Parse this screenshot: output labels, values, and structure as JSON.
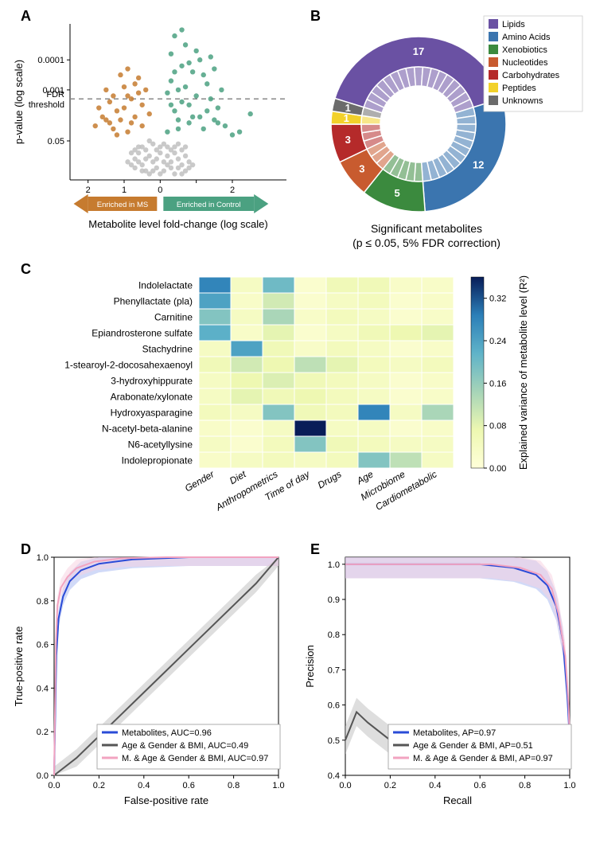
{
  "panelA": {
    "type": "scatter",
    "label": "A",
    "xlabel": "Metabolite level fold-change (log scale)",
    "ylabel": "p-value (log scale)",
    "fdr_label": "FDR\nthreshold",
    "fdr_y": 2.7,
    "xlim": [
      -2.5,
      3.5
    ],
    "ylim": [
      0,
      5.2
    ],
    "yticks": [
      {
        "v": 1.3,
        "l": "0.05"
      },
      {
        "v": 3,
        "l": "0.001"
      },
      {
        "v": 4,
        "l": "0.0001"
      }
    ],
    "xticks": [
      {
        "v": -2,
        "l": "2"
      },
      {
        "v": -1,
        "l": "1"
      },
      {
        "v": 0,
        "l": "0"
      },
      {
        "v": 1,
        "l": ""
      },
      {
        "v": 2,
        "l": "2"
      }
    ],
    "arrow_left_label": "Enriched in MS",
    "arrow_right_label": "Enriched in Control",
    "colors": {
      "ms": "#c67b2f",
      "ctrl": "#4ba181",
      "ns": "#bfbfbf",
      "grid": "#888888"
    },
    "points_ns": [
      [
        -0.5,
        0.5
      ],
      [
        -0.3,
        0.8
      ],
      [
        0.1,
        0.6
      ],
      [
        0.3,
        0.4
      ],
      [
        -0.1,
        1.0
      ],
      [
        0.5,
        0.7
      ],
      [
        -0.6,
        0.9
      ],
      [
        0.2,
        1.1
      ],
      [
        -0.4,
        0.3
      ],
      [
        0.6,
        0.5
      ],
      [
        -0.2,
        0.6
      ],
      [
        0.0,
        0.2
      ],
      [
        0.4,
        0.9
      ],
      [
        -0.7,
        0.4
      ],
      [
        0.7,
        0.3
      ],
      [
        -0.3,
        0.2
      ],
      [
        0.1,
        0.3
      ],
      [
        -0.5,
        1.1
      ],
      [
        0.3,
        1.0
      ],
      [
        -0.1,
        0.4
      ],
      [
        0.5,
        1.2
      ],
      [
        -0.6,
        0.6
      ],
      [
        0.2,
        0.5
      ],
      [
        -0.4,
        0.7
      ],
      [
        0.6,
        1.0
      ],
      [
        -0.2,
        1.2
      ],
      [
        0.0,
        0.9
      ],
      [
        0.4,
        0.2
      ],
      [
        -0.7,
        1.0
      ],
      [
        0.7,
        0.8
      ],
      [
        -0.8,
        0.5
      ],
      [
        0.8,
        0.6
      ],
      [
        -0.3,
        1.3
      ],
      [
        0.3,
        0.6
      ],
      [
        -0.5,
        0.3
      ],
      [
        0.5,
        0.4
      ],
      [
        -0.1,
        0.7
      ],
      [
        0.1,
        1.2
      ],
      [
        -0.6,
        1.1
      ],
      [
        0.6,
        0.2
      ],
      [
        -0.4,
        1.0
      ],
      [
        0.4,
        1.1
      ],
      [
        -0.2,
        0.3
      ],
      [
        0.2,
        0.8
      ],
      [
        0.0,
        1.1
      ],
      [
        -0.7,
        0.7
      ],
      [
        0.7,
        1.1
      ],
      [
        -0.8,
        0.9
      ],
      [
        0.8,
        0.4
      ],
      [
        -0.9,
        0.6
      ],
      [
        0.9,
        0.5
      ]
    ],
    "points_ms": [
      [
        -1.5,
        2.0
      ],
      [
        -1.2,
        2.3
      ],
      [
        -0.9,
        2.8
      ],
      [
        -1.8,
        1.8
      ],
      [
        -0.7,
        3.2
      ],
      [
        -1.1,
        3.5
      ],
      [
        -0.5,
        2.5
      ],
      [
        -1.4,
        2.6
      ],
      [
        -0.8,
        1.9
      ],
      [
        -1.6,
        2.1
      ],
      [
        -0.6,
        2.9
      ],
      [
        -1.3,
        1.7
      ],
      [
        -1.0,
        2.4
      ],
      [
        -0.9,
        1.6
      ],
      [
        -1.7,
        2.4
      ],
      [
        -0.4,
        3.0
      ],
      [
        -1.2,
        1.5
      ],
      [
        -0.7,
        2.1
      ],
      [
        -1.5,
        3.0
      ],
      [
        -0.5,
        1.8
      ],
      [
        -1.1,
        2.0
      ],
      [
        -0.8,
        2.7
      ],
      [
        -1.4,
        1.9
      ],
      [
        -0.6,
        3.4
      ],
      [
        -1.0,
        3.1
      ],
      [
        -0.3,
        2.2
      ],
      [
        -1.3,
        2.8
      ],
      [
        -0.9,
        3.7
      ]
    ],
    "points_ctrl": [
      [
        0.5,
        3.0
      ],
      [
        0.8,
        2.5
      ],
      [
        1.2,
        3.5
      ],
      [
        0.3,
        4.2
      ],
      [
        1.5,
        2.0
      ],
      [
        0.6,
        3.8
      ],
      [
        1.0,
        2.8
      ],
      [
        0.4,
        2.3
      ],
      [
        1.8,
        1.8
      ],
      [
        0.7,
        4.5
      ],
      [
        1.3,
        3.2
      ],
      [
        0.2,
        2.9
      ],
      [
        1.6,
        2.4
      ],
      [
        0.9,
        3.6
      ],
      [
        0.5,
        2.0
      ],
      [
        1.1,
        4.0
      ],
      [
        2.0,
        1.5
      ],
      [
        0.3,
        3.3
      ],
      [
        1.4,
        2.7
      ],
      [
        0.8,
        1.9
      ],
      [
        2.5,
        2.2
      ],
      [
        0.6,
        2.6
      ],
      [
        1.2,
        1.7
      ],
      [
        0.4,
        4.8
      ],
      [
        1.7,
        3.0
      ],
      [
        0.9,
        2.1
      ],
      [
        0.2,
        1.6
      ],
      [
        1.5,
        3.7
      ],
      [
        0.7,
        3.1
      ],
      [
        1.0,
        4.3
      ],
      [
        0.5,
        1.7
      ],
      [
        1.3,
        2.3
      ],
      [
        2.2,
        1.6
      ],
      [
        0.8,
        3.9
      ],
      [
        0.4,
        3.6
      ],
      [
        1.1,
        2.1
      ],
      [
        0.6,
        5.0
      ],
      [
        1.6,
        1.9
      ],
      [
        0.3,
        2.5
      ],
      [
        1.4,
        4.1
      ]
    ]
  },
  "panelB": {
    "type": "pie",
    "label": "B",
    "caption_line1": "Significant metabolites",
    "caption_line2": "(p  ≤ 0.05, 5% FDR correction)",
    "legend_title": "",
    "categories": [
      {
        "name": "Lipids",
        "color": "#6a51a3",
        "count": 17,
        "show_count": true
      },
      {
        "name": "Amino Acids",
        "color": "#3b75af",
        "count": 12,
        "show_count": true
      },
      {
        "name": "Xenobiotics",
        "color": "#3b8a3e",
        "count": 5,
        "show_count": true
      },
      {
        "name": "Nucleotides",
        "color": "#c85b2f",
        "count": 3,
        "show_count": true
      },
      {
        "name": "Carbohydrates",
        "color": "#b52a2a",
        "count": 3,
        "show_count": true
      },
      {
        "name": "Peptides",
        "color": "#f2d12a",
        "count": 1,
        "show_count": true
      },
      {
        "name": "Unknowns",
        "color": "#6b6b6b",
        "count": 1,
        "show_count": true
      }
    ],
    "inner_slice_color_lighten": 0.45
  },
  "panelC": {
    "type": "heatmap",
    "label": "C",
    "cbar_label": "Explained variance of metabolite level (R²)",
    "cbar_ticks": [
      0.0,
      0.08,
      0.16,
      0.24,
      0.32
    ],
    "vmin": 0.0,
    "vmax": 0.36,
    "colormap": [
      {
        "t": 0.0,
        "c": "#ffffd9"
      },
      {
        "t": 0.2,
        "c": "#edf8b1"
      },
      {
        "t": 0.4,
        "c": "#a6d4b8"
      },
      {
        "t": 0.6,
        "c": "#5fb3c9"
      },
      {
        "t": 0.8,
        "c": "#2c7fb8"
      },
      {
        "t": 1.0,
        "c": "#081d58"
      }
    ],
    "rows": [
      "Indolelactate",
      "Phenyllactate (pla)",
      "Carnitine",
      "Epiandrosterone sulfate",
      "Stachydrine",
      "1-stearoyl-2-docosahexaenoyl",
      "3-hydroxyhippurate",
      "Arabonate/xylonate",
      "Hydroxyasparagine",
      "N-acetyl-beta-alanine",
      "N6-acetyllysine",
      "Indolepropionate"
    ],
    "cols": [
      "Gender",
      "Diet",
      "Anthropometrics",
      "Time of day",
      "Drugs",
      "Age",
      "Microbiome",
      "Cardiometabolic"
    ],
    "values": [
      [
        0.28,
        0.04,
        0.2,
        0.02,
        0.06,
        0.06,
        0.03,
        0.03
      ],
      [
        0.24,
        0.03,
        0.1,
        0.02,
        0.04,
        0.05,
        0.02,
        0.03
      ],
      [
        0.18,
        0.04,
        0.14,
        0.03,
        0.05,
        0.04,
        0.02,
        0.03
      ],
      [
        0.22,
        0.03,
        0.08,
        0.02,
        0.04,
        0.06,
        0.07,
        0.08
      ],
      [
        0.04,
        0.24,
        0.06,
        0.03,
        0.05,
        0.04,
        0.02,
        0.03
      ],
      [
        0.06,
        0.1,
        0.07,
        0.12,
        0.08,
        0.05,
        0.04,
        0.05
      ],
      [
        0.04,
        0.07,
        0.09,
        0.06,
        0.05,
        0.04,
        0.02,
        0.03
      ],
      [
        0.04,
        0.08,
        0.06,
        0.07,
        0.05,
        0.04,
        0.02,
        0.03
      ],
      [
        0.05,
        0.04,
        0.18,
        0.06,
        0.05,
        0.28,
        0.04,
        0.14
      ],
      [
        0.03,
        0.02,
        0.04,
        0.36,
        0.04,
        0.04,
        0.02,
        0.03
      ],
      [
        0.04,
        0.02,
        0.05,
        0.18,
        0.06,
        0.05,
        0.04,
        0.04
      ],
      [
        0.03,
        0.04,
        0.05,
        0.04,
        0.05,
        0.18,
        0.12,
        0.04
      ]
    ]
  },
  "panelD": {
    "type": "line",
    "label": "D",
    "xlabel": "False-positive rate",
    "ylabel": "True-positive rate",
    "xlim": [
      0,
      1
    ],
    "ylim": [
      0,
      1
    ],
    "xticks": [
      0.0,
      0.2,
      0.4,
      0.6,
      0.8,
      1.0
    ],
    "yticks": [
      0.0,
      0.2,
      0.4,
      0.6,
      0.8,
      1.0
    ],
    "series": [
      {
        "name": "Metabolites, AUC=0.96",
        "color": "#2a4bd7",
        "band": "#a3b6f2",
        "pts": [
          [
            0,
            0
          ],
          [
            0.01,
            0.55
          ],
          [
            0.02,
            0.72
          ],
          [
            0.04,
            0.82
          ],
          [
            0.07,
            0.89
          ],
          [
            0.12,
            0.94
          ],
          [
            0.2,
            0.97
          ],
          [
            0.35,
            0.99
          ],
          [
            0.6,
            1.0
          ],
          [
            1,
            1
          ]
        ]
      },
      {
        "name": "Age & Gender & BMI, AUC=0.49",
        "color": "#555555",
        "band": "#bdbdbd",
        "pts": [
          [
            0,
            0
          ],
          [
            0.1,
            0.08
          ],
          [
            0.2,
            0.18
          ],
          [
            0.3,
            0.28
          ],
          [
            0.4,
            0.38
          ],
          [
            0.5,
            0.48
          ],
          [
            0.6,
            0.58
          ],
          [
            0.7,
            0.68
          ],
          [
            0.8,
            0.78
          ],
          [
            0.9,
            0.88
          ],
          [
            1,
            1
          ]
        ]
      },
      {
        "name": "M. & Age & Gender & BMI, AUC=0.97",
        "color": "#f2a3c0",
        "band": "#f8cfe0",
        "pts": [
          [
            0,
            0
          ],
          [
            0.008,
            0.6
          ],
          [
            0.015,
            0.78
          ],
          [
            0.03,
            0.86
          ],
          [
            0.06,
            0.91
          ],
          [
            0.1,
            0.95
          ],
          [
            0.18,
            0.98
          ],
          [
            0.3,
            0.995
          ],
          [
            0.5,
            1.0
          ],
          [
            1,
            1
          ]
        ]
      }
    ]
  },
  "panelE": {
    "type": "line",
    "label": "E",
    "xlabel": "Recall",
    "ylabel": "Precision",
    "xlim": [
      0,
      1
    ],
    "ylim": [
      0.4,
      1.02
    ],
    "xticks": [
      0.0,
      0.2,
      0.4,
      0.6,
      0.8,
      1.0
    ],
    "yticks": [
      0.4,
      0.5,
      0.6,
      0.7,
      0.8,
      0.9,
      1.0
    ],
    "series": [
      {
        "name": "Metabolites, AP=0.97",
        "color": "#2a4bd7",
        "band": "#a3b6f2",
        "pts": [
          [
            0,
            1
          ],
          [
            0.3,
            1
          ],
          [
            0.6,
            1
          ],
          [
            0.75,
            0.99
          ],
          [
            0.85,
            0.97
          ],
          [
            0.9,
            0.94
          ],
          [
            0.94,
            0.88
          ],
          [
            0.97,
            0.78
          ],
          [
            0.99,
            0.62
          ],
          [
            1,
            0.5
          ]
        ]
      },
      {
        "name": "Age & Gender & BMI, AP=0.51",
        "color": "#555555",
        "band": "#bdbdbd",
        "pts": [
          [
            0,
            0.5
          ],
          [
            0.05,
            0.58
          ],
          [
            0.1,
            0.55
          ],
          [
            0.2,
            0.5
          ],
          [
            0.35,
            0.47
          ],
          [
            0.5,
            0.49
          ],
          [
            0.7,
            0.5
          ],
          [
            0.85,
            0.49
          ],
          [
            1,
            0.5
          ]
        ]
      },
      {
        "name": "M. & Age & Gender & BMI, AP=0.97",
        "color": "#f2a3c0",
        "band": "#f8cfe0",
        "pts": [
          [
            0,
            1
          ],
          [
            0.35,
            1
          ],
          [
            0.65,
            1
          ],
          [
            0.78,
            0.99
          ],
          [
            0.87,
            0.97
          ],
          [
            0.92,
            0.93
          ],
          [
            0.95,
            0.86
          ],
          [
            0.98,
            0.74
          ],
          [
            0.995,
            0.6
          ],
          [
            1,
            0.5
          ]
        ]
      }
    ]
  }
}
